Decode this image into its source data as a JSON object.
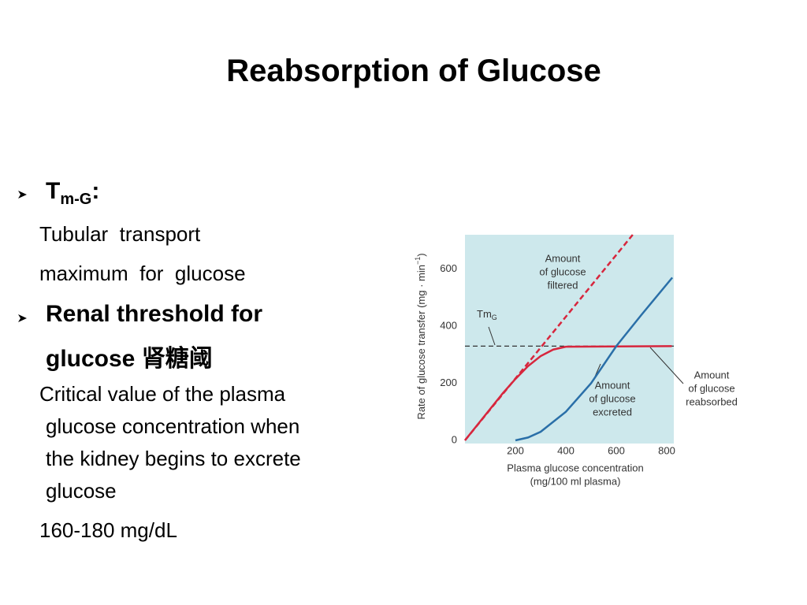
{
  "title": "Reabsorption of Glucose",
  "bullet1": {
    "head": "T",
    "head_sub": "m-G",
    "head_end": ":",
    "lines": [
      "Tubular  transport",
      "maximum  for  glucose"
    ]
  },
  "bullet2": {
    "head_lines": [
      "Renal threshold for",
      "glucose 肾糖阈"
    ],
    "lines": [
      "Critical value of the plasma",
      "glucose concentration when",
      "the kidney begins to excrete",
      "glucose"
    ],
    "value": "160-180 mg/dL"
  },
  "chart_data": {
    "type": "line",
    "ylabel": "Rate of glucose transfer (mg · min",
    "ylabel_sup": "−1",
    "ylabel_end": ")",
    "xlabel_lines": [
      "Plasma glucose concentration",
      "(mg/100 ml plasma)"
    ],
    "xlim": [
      0,
      828
    ],
    "ylim": [
      0,
      720
    ],
    "xticks": [
      200,
      400,
      600,
      800
    ],
    "yticks": [
      0,
      200,
      400,
      600
    ],
    "grid": false,
    "series": [
      {
        "color": "#d7263d",
        "dash": true,
        "x": [
          0,
          665
        ],
        "values": [
          0,
          720
        ]
      },
      {
        "color": "#d7263d",
        "dash": false,
        "x": [
          0,
          150,
          200,
          250,
          300,
          350,
          400,
          820
        ],
        "values": [
          0,
          165,
          215,
          260,
          295,
          318,
          328,
          330
        ]
      },
      {
        "color": "#2a6fa8",
        "dash": false,
        "x": [
          200,
          250,
          300,
          400,
          500,
          600,
          700,
          822
        ],
        "values": [
          0,
          10,
          30,
          100,
          200,
          330,
          440,
          570
        ]
      }
    ],
    "tm": {
      "value": 330,
      "label": "Tm",
      "label_sub": "G"
    },
    "annotations": [
      {
        "lines": [
          "Amount",
          "of glucose",
          "filtered"
        ]
      },
      {
        "lines": [
          "Amount",
          "of glucose",
          "excreted"
        ]
      },
      {
        "lines": [
          "Amount",
          "of glucose",
          "reabsorbed"
        ]
      }
    ]
  }
}
